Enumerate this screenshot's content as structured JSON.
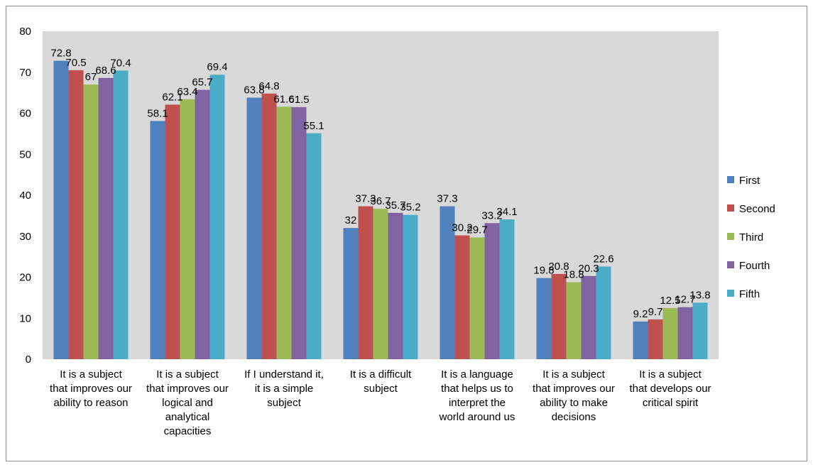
{
  "chart_data": {
    "type": "bar",
    "title": "",
    "xlabel": "",
    "ylabel": "",
    "ylim": [
      0,
      80
    ],
    "yticks": [
      "0",
      "10",
      "20",
      "30",
      "40",
      "50",
      "60",
      "70",
      "80"
    ],
    "grid": false,
    "legend_position": "right",
    "categories": [
      "It is a subject that improves our ability to reason",
      "It is a subject that improves our logical and analytical capacities",
      "If I understand it, it is a simple subject",
      "It is a difficult subject",
      "It is a language that helps us to interpret the world around us",
      "It is a subject that improves our ability to make decisions",
      "It is a subject that develops our critical spirit"
    ],
    "category_label_lines": [
      [
        "It is a subject",
        "that improves our",
        "ability to reason"
      ],
      [
        "It is a subject",
        "that improves our",
        "logical and",
        "analytical",
        "capacities"
      ],
      [
        "If I understand it,",
        "it is a simple",
        "subject"
      ],
      [
        "It is a difficult",
        "subject"
      ],
      [
        "It is a language",
        "that helps us to",
        "interpret the",
        "world around us"
      ],
      [
        "It is a subject",
        "that improves our",
        "ability to make",
        "decisions"
      ],
      [
        "It is a subject",
        "that develops our",
        "critical spirit"
      ]
    ],
    "series": [
      {
        "name": "First",
        "color": "#4F81BD",
        "values": [
          72.8,
          58.1,
          63.8,
          32,
          37.3,
          19.8,
          9.2
        ]
      },
      {
        "name": "Second",
        "color": "#C0504D",
        "values": [
          70.5,
          62.1,
          64.8,
          37.3,
          30.2,
          20.8,
          9.7
        ]
      },
      {
        "name": "Third",
        "color": "#9BBB59",
        "values": [
          67,
          63.4,
          61.6,
          36.7,
          29.7,
          18.8,
          12.5
        ]
      },
      {
        "name": "Fourth",
        "color": "#8064A2",
        "values": [
          68.6,
          65.7,
          61.5,
          35.7,
          33.2,
          20.3,
          12.7
        ]
      },
      {
        "name": "Fifth",
        "color": "#4BACC6",
        "values": [
          70.4,
          69.4,
          55.1,
          35.2,
          34.1,
          22.6,
          13.8
        ]
      }
    ],
    "colors": {
      "plot_background": "#D9D9D9",
      "page_background": "#FFFFFF",
      "frame": "#8C8C8C"
    }
  }
}
